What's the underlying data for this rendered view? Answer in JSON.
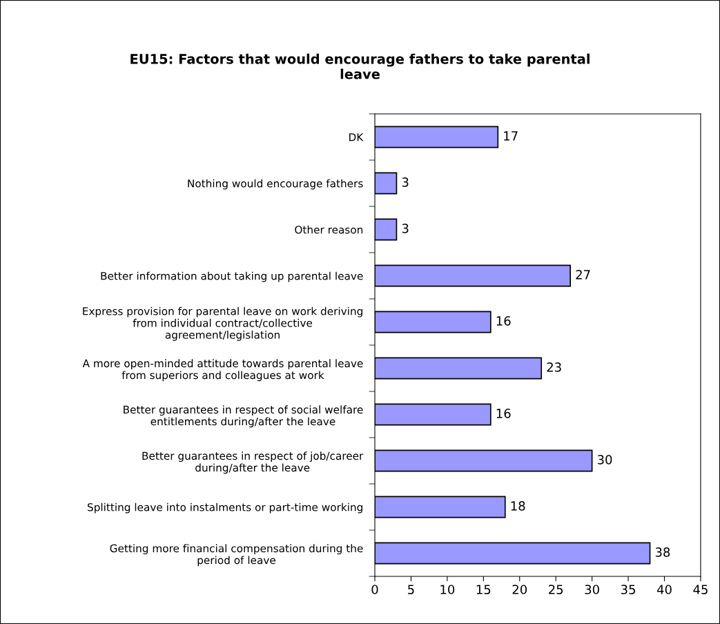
{
  "chart_data": {
    "type": "bar",
    "orientation": "horizontal",
    "title": "EU15: Factors that would encourage fathers to take parental\nleave",
    "categories": [
      "DK",
      "Nothing would encourage fathers",
      "Other reason",
      "Better information about taking up parental leave",
      "Express provision for parental leave on work deriving\nfrom individual contract/collective\nagreement/legislation",
      "A more open-minded attitude towards parental leave\nfrom superiors and colleagues at work",
      "Better guarantees in respect of social welfare\nentitlements during/after the leave",
      "Better guarantees in respect of job/career\nduring/after the leave",
      "Splitting leave into instalments or part-time working",
      "Getting more financial compensation during the\nperiod of leave"
    ],
    "values": [
      17,
      3,
      3,
      27,
      16,
      23,
      16,
      30,
      18,
      38
    ],
    "color": "#9999ff",
    "xlim": [
      0,
      45
    ],
    "xticks": [
      0,
      5,
      10,
      15,
      20,
      25,
      30,
      35,
      40,
      45
    ],
    "data_labels": true,
    "grid": false,
    "legend": false
  }
}
